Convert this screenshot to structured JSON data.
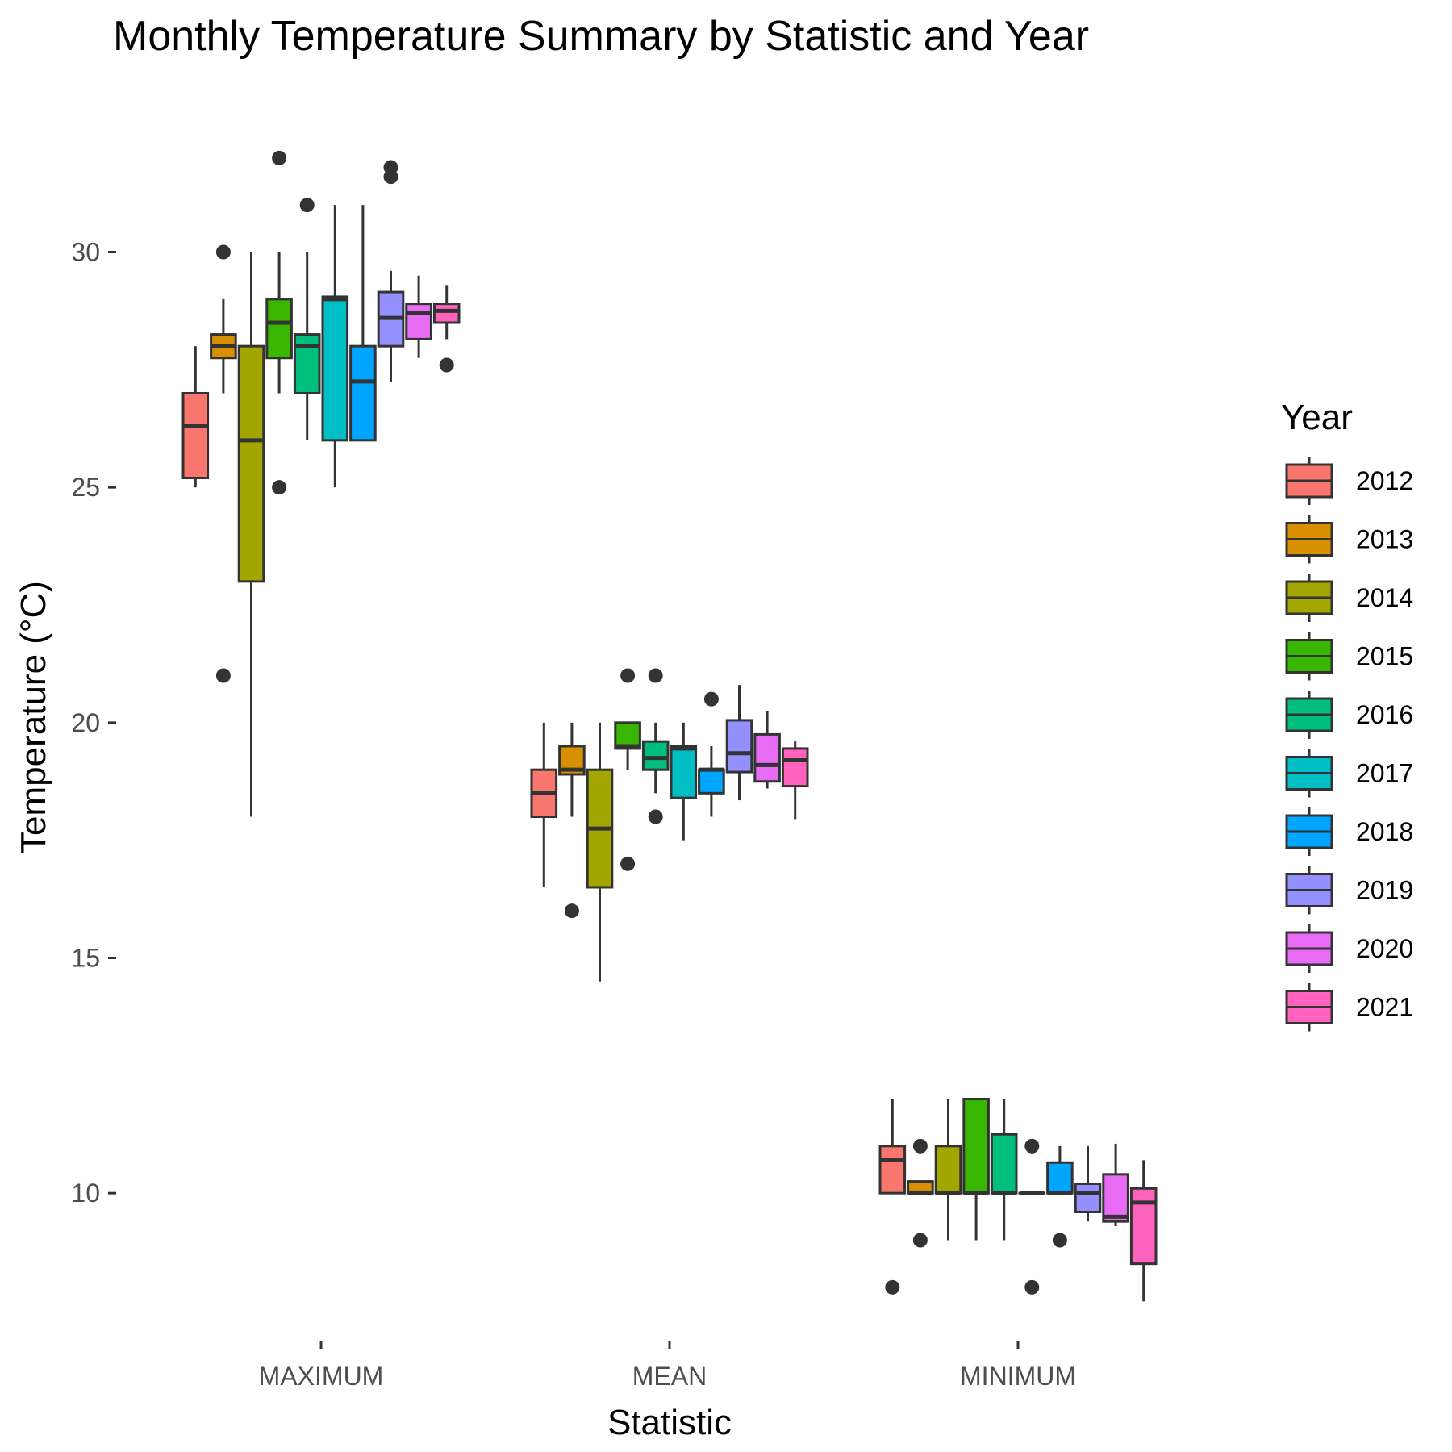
{
  "chart_data": {
    "type": "boxplot",
    "title": "Monthly Temperature Summary by Statistic and Year",
    "xlabel": "Statistic",
    "ylabel": "Temperature (°C)",
    "categories": [
      "MAXIMUM",
      "MEAN",
      "MINIMUM"
    ],
    "y_ticks": [
      10,
      15,
      20,
      25,
      30
    ],
    "ylim": [
      6.9,
      33.3
    ],
    "grid": false,
    "legend": {
      "title": "Year",
      "position": "right"
    },
    "series": [
      {
        "name": "2012",
        "color": "#F8766D",
        "boxes": [
          {
            "category": "MAXIMUM",
            "whisker_low": 25.0,
            "q1": 25.2,
            "median": 26.3,
            "q3": 27.0,
            "whisker_high": 28.0,
            "outliers": []
          },
          {
            "category": "MEAN",
            "whisker_low": 16.5,
            "q1": 18.0,
            "median": 18.5,
            "q3": 19.0,
            "whisker_high": 20.0,
            "outliers": []
          },
          {
            "category": "MINIMUM",
            "whisker_low": 10.0,
            "q1": 10.0,
            "median": 10.7,
            "q3": 11.0,
            "whisker_high": 12.0,
            "outliers": [
              8.0
            ]
          }
        ]
      },
      {
        "name": "2013",
        "color": "#D89000",
        "boxes": [
          {
            "category": "MAXIMUM",
            "whisker_low": 27.0,
            "q1": 27.75,
            "median": 28.0,
            "q3": 28.25,
            "whisker_high": 29.0,
            "outliers": [
              30.0,
              21.0
            ]
          },
          {
            "category": "MEAN",
            "whisker_low": 18.0,
            "q1": 18.9,
            "median": 19.0,
            "q3": 19.5,
            "whisker_high": 20.0,
            "outliers": [
              16.0
            ]
          },
          {
            "category": "MINIMUM",
            "whisker_low": 10.0,
            "q1": 10.0,
            "median": 10.0,
            "q3": 10.25,
            "whisker_high": 10.25,
            "outliers": [
              11.0,
              9.0
            ]
          }
        ]
      },
      {
        "name": "2014",
        "color": "#A3A500",
        "boxes": [
          {
            "category": "MAXIMUM",
            "whisker_low": 18.0,
            "q1": 23.0,
            "median": 26.0,
            "q3": 28.0,
            "whisker_high": 30.0,
            "outliers": []
          },
          {
            "category": "MEAN",
            "whisker_low": 14.5,
            "q1": 16.5,
            "median": 17.75,
            "q3": 19.0,
            "whisker_high": 20.0,
            "outliers": []
          },
          {
            "category": "MINIMUM",
            "whisker_low": 9.0,
            "q1": 10.0,
            "median": 10.0,
            "q3": 11.0,
            "whisker_high": 12.0,
            "outliers": []
          }
        ]
      },
      {
        "name": "2015",
        "color": "#39B600",
        "boxes": [
          {
            "category": "MAXIMUM",
            "whisker_low": 27.0,
            "q1": 27.75,
            "median": 28.5,
            "q3": 29.0,
            "whisker_high": 30.0,
            "outliers": [
              32.0,
              25.0
            ]
          },
          {
            "category": "MEAN",
            "whisker_low": 19.0,
            "q1": 19.45,
            "median": 19.5,
            "q3": 20.0,
            "whisker_high": 20.0,
            "outliers": [
              21.0,
              17.0
            ]
          },
          {
            "category": "MINIMUM",
            "whisker_low": 9.0,
            "q1": 10.0,
            "median": 10.0,
            "q3": 12.0,
            "whisker_high": 12.0,
            "outliers": []
          }
        ]
      },
      {
        "name": "2016",
        "color": "#00BF7D",
        "boxes": [
          {
            "category": "MAXIMUM",
            "whisker_low": 26.0,
            "q1": 27.0,
            "median": 28.0,
            "q3": 28.25,
            "whisker_high": 30.0,
            "outliers": [
              31.0
            ]
          },
          {
            "category": "MEAN",
            "whisker_low": 18.5,
            "q1": 19.0,
            "median": 19.25,
            "q3": 19.6,
            "whisker_high": 20.0,
            "outliers": [
              21.0,
              18.0
            ]
          },
          {
            "category": "MINIMUM",
            "whisker_low": 9.0,
            "q1": 10.0,
            "median": 10.0,
            "q3": 11.25,
            "whisker_high": 12.0,
            "outliers": []
          }
        ]
      },
      {
        "name": "2017",
        "color": "#00BFC4",
        "boxes": [
          {
            "category": "MAXIMUM",
            "whisker_low": 25.0,
            "q1": 26.0,
            "median": 29.0,
            "q3": 29.05,
            "whisker_high": 31.0,
            "outliers": []
          },
          {
            "category": "MEAN",
            "whisker_low": 17.5,
            "q1": 18.4,
            "median": 19.45,
            "q3": 19.5,
            "whisker_high": 20.0,
            "outliers": []
          },
          {
            "category": "MINIMUM",
            "whisker_low": 10.0,
            "q1": 10.0,
            "median": 10.0,
            "q3": 10.0,
            "whisker_high": 10.0,
            "outliers": [
              11.0,
              8.0
            ]
          }
        ]
      },
      {
        "name": "2018",
        "color": "#00A5FF",
        "boxes": [
          {
            "category": "MAXIMUM",
            "whisker_low": 26.0,
            "q1": 26.0,
            "median": 27.25,
            "q3": 28.0,
            "whisker_high": 31.0,
            "outliers": []
          },
          {
            "category": "MEAN",
            "whisker_low": 18.0,
            "q1": 18.5,
            "median": 19.0,
            "q3": 19.0,
            "whisker_high": 19.5,
            "outliers": [
              20.5
            ]
          },
          {
            "category": "MINIMUM",
            "whisker_low": 10.0,
            "q1": 10.0,
            "median": 10.0,
            "q3": 10.65,
            "whisker_high": 11.0,
            "outliers": [
              9.0
            ]
          }
        ]
      },
      {
        "name": "2019",
        "color": "#9590FF",
        "boxes": [
          {
            "category": "MAXIMUM",
            "whisker_low": 27.25,
            "q1": 28.0,
            "median": 28.6,
            "q3": 29.15,
            "whisker_high": 29.6,
            "outliers": [
              31.8,
              31.6
            ]
          },
          {
            "category": "MEAN",
            "whisker_low": 18.35,
            "q1": 18.95,
            "median": 19.35,
            "q3": 20.05,
            "whisker_high": 20.8,
            "outliers": []
          },
          {
            "category": "MINIMUM",
            "whisker_low": 9.4,
            "q1": 9.6,
            "median": 10.0,
            "q3": 10.2,
            "whisker_high": 11.0,
            "outliers": []
          }
        ]
      },
      {
        "name": "2020",
        "color": "#E76BF3",
        "boxes": [
          {
            "category": "MAXIMUM",
            "whisker_low": 27.75,
            "q1": 28.15,
            "median": 28.7,
            "q3": 28.9,
            "whisker_high": 29.5,
            "outliers": []
          },
          {
            "category": "MEAN",
            "whisker_low": 18.6,
            "q1": 18.75,
            "median": 19.1,
            "q3": 19.75,
            "whisker_high": 20.25,
            "outliers": []
          },
          {
            "category": "MINIMUM",
            "whisker_low": 9.3,
            "q1": 9.4,
            "median": 9.5,
            "q3": 10.4,
            "whisker_high": 11.05,
            "outliers": []
          }
        ]
      },
      {
        "name": "2021",
        "color": "#FF62BC",
        "boxes": [
          {
            "category": "MAXIMUM",
            "whisker_low": 28.15,
            "q1": 28.5,
            "median": 28.75,
            "q3": 28.9,
            "whisker_high": 29.3,
            "outliers": [
              27.6
            ]
          },
          {
            "category": "MEAN",
            "whisker_low": 17.95,
            "q1": 18.65,
            "median": 19.2,
            "q3": 19.45,
            "whisker_high": 19.6,
            "outliers": []
          },
          {
            "category": "MINIMUM",
            "whisker_low": 7.7,
            "q1": 8.5,
            "median": 9.8,
            "q3": 10.1,
            "whisker_high": 10.7,
            "outliers": []
          }
        ]
      }
    ]
  }
}
